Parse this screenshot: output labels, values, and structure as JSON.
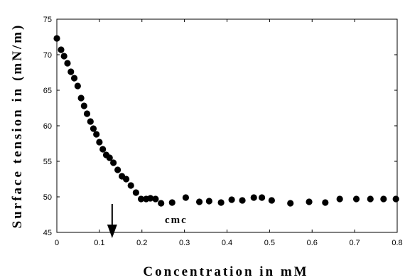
{
  "chart_data": {
    "type": "scatter",
    "xlabel": "Concentration in mM",
    "ylabel": "Surface tension in (mN/m)",
    "xlim": [
      0,
      0.8
    ],
    "ylim": [
      45,
      75
    ],
    "xticks": [
      "0",
      "0.1",
      "0.2",
      "0.3",
      "0.4",
      "0.5",
      "0.6",
      "0.7",
      "0.8"
    ],
    "yticks": [
      "45",
      "50",
      "55",
      "60",
      "65",
      "70",
      "75"
    ],
    "grid": false,
    "legend": "none",
    "marker_color": "#000000",
    "annotation": {
      "text": "cmc",
      "arrow_x": 0.13
    },
    "x": [
      0.0,
      0.01,
      0.017,
      0.025,
      0.033,
      0.041,
      0.049,
      0.057,
      0.064,
      0.071,
      0.079,
      0.086,
      0.093,
      0.1,
      0.108,
      0.116,
      0.124,
      0.133,
      0.143,
      0.153,
      0.163,
      0.174,
      0.186,
      0.198,
      0.21,
      0.22,
      0.232,
      0.245,
      0.271,
      0.303,
      0.335,
      0.358,
      0.386,
      0.411,
      0.436,
      0.463,
      0.482,
      0.505,
      0.549,
      0.593,
      0.631,
      0.665,
      0.704,
      0.737,
      0.768,
      0.797
    ],
    "y": [
      72.3,
      70.7,
      69.8,
      68.8,
      67.6,
      66.7,
      65.6,
      63.9,
      62.8,
      61.7,
      60.6,
      59.6,
      58.8,
      57.7,
      56.7,
      55.9,
      55.5,
      54.8,
      53.8,
      52.9,
      52.5,
      51.6,
      50.6,
      49.7,
      49.7,
      49.8,
      49.7,
      49.1,
      49.2,
      49.9,
      49.3,
      49.4,
      49.2,
      49.6,
      49.5,
      49.9,
      49.9,
      49.5,
      49.1,
      49.3,
      49.2,
      49.7,
      49.7,
      49.7,
      49.7,
      49.7
    ]
  }
}
